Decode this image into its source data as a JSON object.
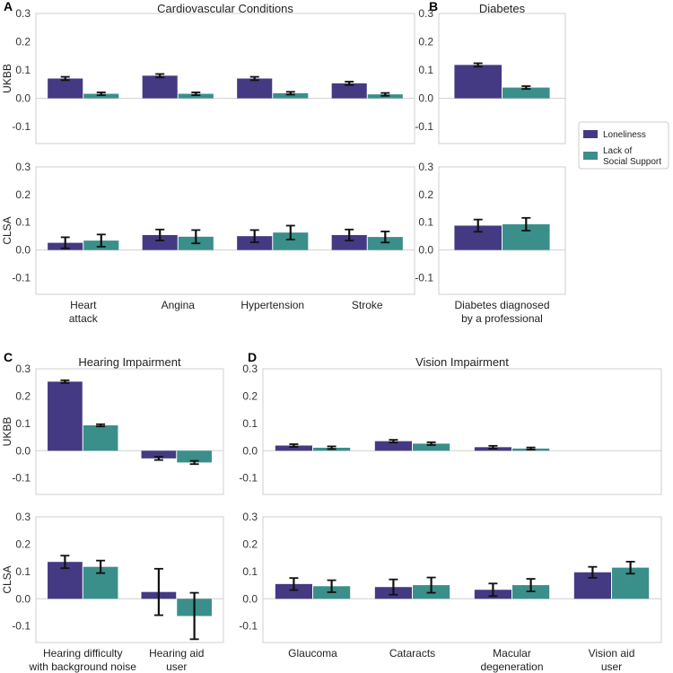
{
  "colors": {
    "loneliness": "#443a83",
    "social": "#3a8f8a",
    "frame": "#cfcfcf",
    "zero": "#d0d0d0",
    "err": "#111111"
  },
  "legend": {
    "items": [
      "Loneliness",
      "Lack of\nSocial Support"
    ]
  },
  "chart_data": [
    {
      "id": "A",
      "panel_label": "A",
      "title": "Cardiovascular Conditions",
      "type": "bar",
      "ylim": [
        -0.16,
        0.3
      ],
      "yticks": [
        -0.1,
        0.0,
        0.1,
        0.2,
        0.3
      ],
      "categories": [
        "Heart\nattack",
        "Angina",
        "Hypertension",
        "Stroke"
      ],
      "rows": [
        {
          "ylabel": "UKBB",
          "series": [
            {
              "name": "Loneliness",
              "values": [
                0.07,
                0.08,
                0.07,
                0.053
              ],
              "err": [
                0.006,
                0.006,
                0.006,
                0.006
              ]
            },
            {
              "name": "Lack of Social Support",
              "values": [
                0.016,
                0.016,
                0.018,
                0.014
              ],
              "err": [
                0.005,
                0.005,
                0.005,
                0.005
              ]
            }
          ]
        },
        {
          "ylabel": "CLSA",
          "series": [
            {
              "name": "Loneliness",
              "values": [
                0.026,
                0.054,
                0.05,
                0.054
              ],
              "err": [
                0.02,
                0.02,
                0.022,
                0.02
              ]
            },
            {
              "name": "Lack of Social Support",
              "values": [
                0.034,
                0.048,
                0.063,
                0.047
              ],
              "err": [
                0.022,
                0.024,
                0.025,
                0.02
              ]
            }
          ]
        }
      ]
    },
    {
      "id": "B",
      "panel_label": "B",
      "title": "Diabetes",
      "type": "bar",
      "ylim": [
        -0.16,
        0.3
      ],
      "yticks": [
        -0.1,
        0.0,
        0.1,
        0.2,
        0.3
      ],
      "categories": [
        "Diabetes diagnosed\nby a professional"
      ],
      "rows": [
        {
          "ylabel": "",
          "series": [
            {
              "name": "Loneliness",
              "values": [
                0.118
              ],
              "err": [
                0.006
              ]
            },
            {
              "name": "Lack of Social Support",
              "values": [
                0.038
              ],
              "err": [
                0.005
              ]
            }
          ]
        },
        {
          "ylabel": "",
          "series": [
            {
              "name": "Loneliness",
              "values": [
                0.088
              ],
              "err": [
                0.022
              ]
            },
            {
              "name": "Lack of Social Support",
              "values": [
                0.093
              ],
              "err": [
                0.023
              ]
            }
          ]
        }
      ]
    },
    {
      "id": "C",
      "panel_label": "C",
      "title": "Hearing Impairment",
      "type": "bar",
      "ylim": [
        -0.16,
        0.3
      ],
      "yticks": [
        -0.1,
        0.0,
        0.1,
        0.2,
        0.3
      ],
      "categories": [
        "Hearing difficulty\nwith background noise",
        "Hearing aid\nuser"
      ],
      "rows": [
        {
          "ylabel": "UKBB",
          "series": [
            {
              "name": "Loneliness",
              "values": [
                0.253,
                -0.028
              ],
              "err": [
                0.005,
                0.006
              ]
            },
            {
              "name": "Lack of Social Support",
              "values": [
                0.093,
                -0.043
              ],
              "err": [
                0.004,
                0.006
              ]
            }
          ]
        },
        {
          "ylabel": "CLSA",
          "series": [
            {
              "name": "Loneliness",
              "values": [
                0.135,
                0.025
              ],
              "err": [
                0.023,
                0.085
              ]
            },
            {
              "name": "Lack of Social Support",
              "values": [
                0.117,
                -0.063
              ],
              "err": [
                0.023,
                0.085
              ]
            }
          ]
        }
      ]
    },
    {
      "id": "D",
      "panel_label": "D",
      "title": "Vision Impairment",
      "type": "bar",
      "ylim": [
        -0.16,
        0.3
      ],
      "yticks": [
        -0.1,
        0.0,
        0.1,
        0.2,
        0.3
      ],
      "categories": [
        "Glaucoma",
        "Cataracts",
        "Macular\ndegeneration",
        "Vision aid\nuser"
      ],
      "rows": [
        {
          "ylabel": "",
          "series": [
            {
              "name": "Loneliness",
              "values": [
                0.019,
                0.035,
                0.013,
                null
              ],
              "err": [
                0.005,
                0.005,
                0.005,
                null
              ]
            },
            {
              "name": "Lack of Social Support",
              "values": [
                0.011,
                0.026,
                0.008,
                null
              ],
              "err": [
                0.005,
                0.005,
                0.004,
                null
              ]
            }
          ]
        },
        {
          "ylabel": "",
          "series": [
            {
              "name": "Loneliness",
              "values": [
                0.054,
                0.043,
                0.033,
                0.097
              ],
              "err": [
                0.022,
                0.028,
                0.023,
                0.02
              ]
            },
            {
              "name": "Lack of Social Support",
              "values": [
                0.046,
                0.05,
                0.05,
                0.114
              ],
              "err": [
                0.022,
                0.028,
                0.023,
                0.022
              ]
            }
          ]
        }
      ]
    }
  ]
}
